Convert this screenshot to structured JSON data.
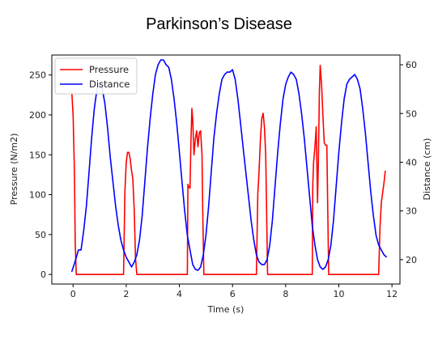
{
  "title": "Parkinson’s Disease",
  "chart_data": {
    "type": "line",
    "xlabel": "Time (s)",
    "ylabel_left": "Pressure (N/m2)",
    "ylabel_right": "Distance (cm)",
    "xlim": [
      -0.8,
      12.3
    ],
    "ylim_left": [
      -12,
      275
    ],
    "ylim_right": [
      15,
      62
    ],
    "xticks": [
      0,
      2,
      4,
      6,
      8,
      10,
      12
    ],
    "yticks_left": [
      0,
      50,
      100,
      150,
      200,
      250
    ],
    "yticks_right": [
      20,
      30,
      40,
      50,
      60
    ],
    "grid": false,
    "legend": {
      "position": "top-left",
      "entries": [
        "Pressure",
        "Distance"
      ]
    },
    "series": [
      {
        "name": "Pressure",
        "axis": "left",
        "color": "#ff0000",
        "points": [
          [
            -0.05,
            230
          ],
          [
            0.0,
            200
          ],
          [
            0.05,
            130
          ],
          [
            0.08,
            40
          ],
          [
            0.12,
            0
          ],
          [
            1.9,
            0
          ],
          [
            1.95,
            105
          ],
          [
            2.0,
            140
          ],
          [
            2.05,
            153
          ],
          [
            2.1,
            153
          ],
          [
            2.15,
            145
          ],
          [
            2.2,
            130
          ],
          [
            2.25,
            120
          ],
          [
            2.3,
            80
          ],
          [
            2.35,
            20
          ],
          [
            2.4,
            0
          ],
          [
            4.3,
            0
          ],
          [
            4.32,
            113
          ],
          [
            4.35,
            110
          ],
          [
            4.4,
            108
          ],
          [
            4.43,
            160
          ],
          [
            4.47,
            208
          ],
          [
            4.5,
            195
          ],
          [
            4.55,
            150
          ],
          [
            4.6,
            170
          ],
          [
            4.65,
            180
          ],
          [
            4.7,
            160
          ],
          [
            4.75,
            178
          ],
          [
            4.8,
            180
          ],
          [
            4.85,
            150
          ],
          [
            4.88,
            80
          ],
          [
            4.92,
            0
          ],
          [
            6.9,
            0
          ],
          [
            6.95,
            100
          ],
          [
            7.0,
            130
          ],
          [
            7.05,
            170
          ],
          [
            7.1,
            195
          ],
          [
            7.15,
            202
          ],
          [
            7.2,
            185
          ],
          [
            7.25,
            150
          ],
          [
            7.3,
            40
          ],
          [
            7.32,
            0
          ],
          [
            9.0,
            0
          ],
          [
            9.02,
            110
          ],
          [
            9.05,
            140
          ],
          [
            9.1,
            160
          ],
          [
            9.15,
            185
          ],
          [
            9.2,
            90
          ],
          [
            9.23,
            140
          ],
          [
            9.27,
            230
          ],
          [
            9.3,
            262
          ],
          [
            9.35,
            238
          ],
          [
            9.4,
            200
          ],
          [
            9.45,
            165
          ],
          [
            9.5,
            162
          ],
          [
            9.55,
            162
          ],
          [
            9.58,
            90
          ],
          [
            9.62,
            0
          ],
          [
            11.5,
            0
          ],
          [
            11.55,
            60
          ],
          [
            11.6,
            90
          ],
          [
            11.7,
            115
          ],
          [
            11.75,
            130
          ]
        ]
      },
      {
        "name": "Distance",
        "axis": "right",
        "color": "#0000ff",
        "points": [
          [
            -0.05,
            17.5
          ],
          [
            0.1,
            20
          ],
          [
            0.2,
            22
          ],
          [
            0.3,
            22
          ],
          [
            0.4,
            26
          ],
          [
            0.5,
            31
          ],
          [
            0.6,
            38
          ],
          [
            0.7,
            45
          ],
          [
            0.8,
            51
          ],
          [
            0.9,
            55
          ],
          [
            1.0,
            56
          ],
          [
            1.1,
            55
          ],
          [
            1.2,
            52
          ],
          [
            1.3,
            47
          ],
          [
            1.4,
            41
          ],
          [
            1.5,
            36
          ],
          [
            1.6,
            31
          ],
          [
            1.7,
            27
          ],
          [
            1.8,
            24
          ],
          [
            1.9,
            22
          ],
          [
            2.0,
            20.5
          ],
          [
            2.1,
            19.5
          ],
          [
            2.2,
            18.5
          ],
          [
            2.3,
            19.5
          ],
          [
            2.4,
            21
          ],
          [
            2.5,
            24
          ],
          [
            2.6,
            29
          ],
          [
            2.7,
            36
          ],
          [
            2.8,
            43
          ],
          [
            2.9,
            49
          ],
          [
            3.0,
            54
          ],
          [
            3.1,
            58
          ],
          [
            3.2,
            60
          ],
          [
            3.3,
            61
          ],
          [
            3.4,
            61
          ],
          [
            3.5,
            60
          ],
          [
            3.6,
            59.5
          ],
          [
            3.7,
            57
          ],
          [
            3.8,
            53
          ],
          [
            3.9,
            48
          ],
          [
            4.0,
            42
          ],
          [
            4.1,
            36
          ],
          [
            4.2,
            30
          ],
          [
            4.3,
            25
          ],
          [
            4.4,
            22
          ],
          [
            4.5,
            19
          ],
          [
            4.6,
            18
          ],
          [
            4.7,
            17.8
          ],
          [
            4.8,
            18.5
          ],
          [
            4.9,
            21
          ],
          [
            5.0,
            25
          ],
          [
            5.1,
            31
          ],
          [
            5.2,
            38
          ],
          [
            5.3,
            45
          ],
          [
            5.4,
            50
          ],
          [
            5.5,
            54
          ],
          [
            5.6,
            57
          ],
          [
            5.7,
            58
          ],
          [
            5.8,
            58.5
          ],
          [
            5.9,
            58.5
          ],
          [
            6.0,
            59
          ],
          [
            6.1,
            57
          ],
          [
            6.2,
            53
          ],
          [
            6.3,
            48
          ],
          [
            6.4,
            43
          ],
          [
            6.5,
            38
          ],
          [
            6.6,
            33
          ],
          [
            6.7,
            28
          ],
          [
            6.8,
            24
          ],
          [
            6.9,
            21
          ],
          [
            7.0,
            19.5
          ],
          [
            7.1,
            19
          ],
          [
            7.2,
            19
          ],
          [
            7.3,
            20
          ],
          [
            7.4,
            23
          ],
          [
            7.5,
            28
          ],
          [
            7.6,
            35
          ],
          [
            7.7,
            42
          ],
          [
            7.8,
            48
          ],
          [
            7.9,
            53
          ],
          [
            8.0,
            56
          ],
          [
            8.1,
            57.5
          ],
          [
            8.2,
            58.5
          ],
          [
            8.3,
            58
          ],
          [
            8.4,
            57
          ],
          [
            8.5,
            54
          ],
          [
            8.6,
            50
          ],
          [
            8.7,
            45
          ],
          [
            8.8,
            39
          ],
          [
            8.9,
            33
          ],
          [
            9.0,
            27
          ],
          [
            9.1,
            23
          ],
          [
            9.2,
            20
          ],
          [
            9.3,
            18.5
          ],
          [
            9.4,
            18
          ],
          [
            9.5,
            18.5
          ],
          [
            9.6,
            20
          ],
          [
            9.7,
            23
          ],
          [
            9.8,
            28
          ],
          [
            9.9,
            35
          ],
          [
            10.0,
            42
          ],
          [
            10.1,
            48
          ],
          [
            10.2,
            53
          ],
          [
            10.3,
            56
          ],
          [
            10.4,
            57
          ],
          [
            10.5,
            57.5
          ],
          [
            10.6,
            58
          ],
          [
            10.7,
            57
          ],
          [
            10.8,
            55
          ],
          [
            10.9,
            51
          ],
          [
            11.0,
            46
          ],
          [
            11.1,
            40
          ],
          [
            11.2,
            34
          ],
          [
            11.3,
            29
          ],
          [
            11.4,
            25
          ],
          [
            11.5,
            23
          ],
          [
            11.6,
            22
          ],
          [
            11.7,
            21
          ],
          [
            11.8,
            20.5
          ]
        ]
      }
    ]
  }
}
